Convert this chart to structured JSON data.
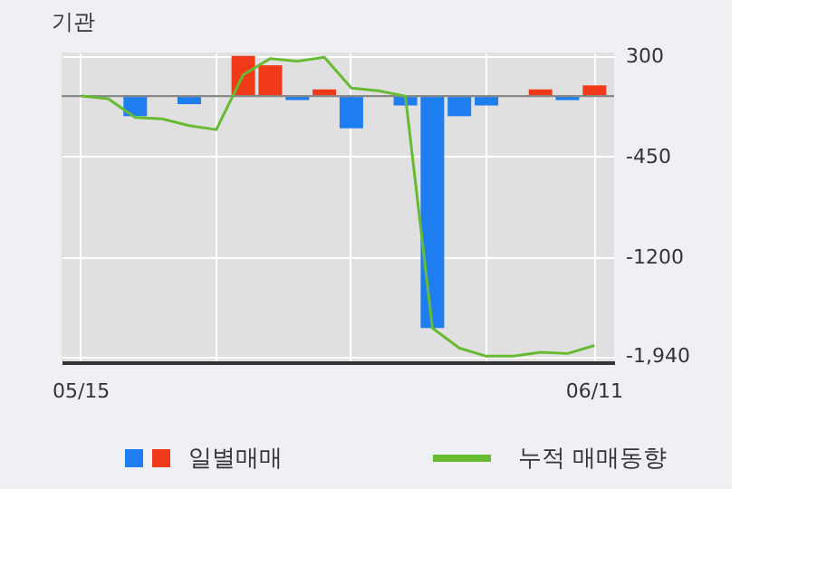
{
  "chart_data": {
    "type": "bar",
    "title": "기관",
    "categories": [
      "05/15",
      null,
      null,
      null,
      null,
      null,
      null,
      null,
      null,
      null,
      null,
      null,
      null,
      null,
      null,
      null,
      null,
      null,
      null,
      "06/11"
    ],
    "series": [
      {
        "name": "일별매매",
        "values": [
          0,
          0,
          -150,
          0,
          -60,
          0,
          300,
          230,
          -30,
          50,
          -240,
          0,
          -70,
          -1730,
          -150,
          -70,
          0,
          50,
          -30,
          80
        ],
        "colors": [
          "#1e7ef0",
          "#1e7ef0",
          "#1e7ef0",
          "#1e7ef0",
          "#1e7ef0",
          "#1e7ef0",
          "#f03a1a",
          "#f03a1a",
          "#1e7ef0",
          "#f03a1a",
          "#1e7ef0",
          "#1e7ef0",
          "#1e7ef0",
          "#1e7ef0",
          "#1e7ef0",
          "#1e7ef0",
          "#1e7ef0",
          "#f03a1a",
          "#1e7ef0",
          "#f03a1a"
        ]
      },
      {
        "name": "누적 매매동향",
        "type": "line",
        "color": "#66bb33",
        "values": [
          0,
          -20,
          -160,
          -170,
          -220,
          -250,
          160,
          280,
          260,
          290,
          60,
          40,
          0,
          -1730,
          -1880,
          -1940,
          -1940,
          -1910,
          -1920,
          -1860
        ]
      }
    ],
    "ylim": [
      -1985,
      325
    ],
    "yticks": [
      300,
      -450,
      -1200,
      {
        "value": -1940,
        "label": "-1,940"
      }
    ],
    "grid": true,
    "legend": "bottom"
  }
}
